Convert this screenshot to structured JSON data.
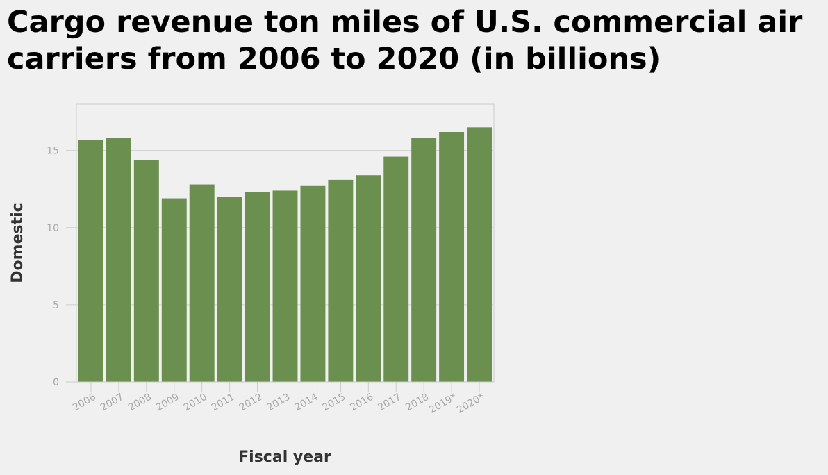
{
  "chart_data": {
    "type": "bar",
    "title": "Cargo revenue ton miles of U.S. commercial air carriers from 2006 to 2020 (in billions)",
    "xlabel": "Fiscal year",
    "ylabel": "Domestic",
    "categories": [
      "2006",
      "2007",
      "2008",
      "2009",
      "2010",
      "2011",
      "2012",
      "2013",
      "2014",
      "2015",
      "2016",
      "2017",
      "2018",
      "2019*",
      "2020*"
    ],
    "values": [
      15.7,
      15.8,
      14.4,
      11.9,
      12.8,
      12.0,
      12.3,
      12.4,
      12.7,
      13.1,
      13.4,
      14.6,
      15.8,
      16.2,
      16.5
    ],
    "ylim": [
      0,
      18
    ],
    "yticks": [
      0,
      5,
      10,
      15
    ],
    "grid": true,
    "legend": "none",
    "bar_color": "#6b8f4e",
    "grid_color": "#cfcfcf",
    "axis_color": "#cccccc"
  }
}
